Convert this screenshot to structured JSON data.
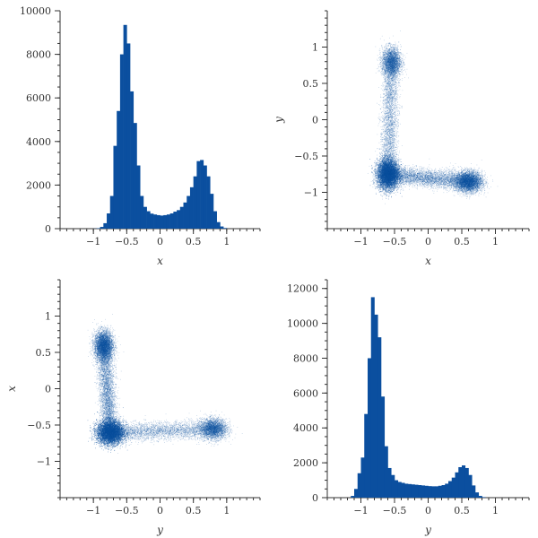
{
  "accent_color": "#0b4f9f",
  "chart_data": [
    {
      "type": "bar",
      "panel": "top-left",
      "xlabel": "x",
      "ylabel": "",
      "xlim": [
        -1.5,
        1.5
      ],
      "ylim": [
        0,
        10000
      ],
      "xticks": [
        -1,
        -0.5,
        0,
        0.5,
        1
      ],
      "yticks": [
        0,
        2000,
        4000,
        6000,
        8000,
        10000
      ],
      "bin_width": 0.05,
      "bin_start": -1.0,
      "values": [
        5,
        20,
        80,
        250,
        700,
        1500,
        3800,
        5400,
        8000,
        9350,
        8500,
        6300,
        4850,
        2900,
        1500,
        1000,
        800,
        690,
        650,
        620,
        600,
        620,
        650,
        700,
        780,
        850,
        1000,
        1200,
        1500,
        1900,
        2400,
        3100,
        3150,
        2900,
        2400,
        1600,
        800,
        300,
        100,
        30
      ]
    },
    {
      "type": "scatter",
      "panel": "top-right",
      "xlabel": "x",
      "ylabel": "y",
      "xlim": [
        -1.5,
        1.5
      ],
      "ylim": [
        -1.5,
        1.5
      ],
      "xticks": [
        -1,
        -0.5,
        0,
        0.5,
        1
      ],
      "yticks": [
        -1,
        -0.5,
        0,
        0.5,
        1
      ],
      "clusters": [
        {
          "cx": -0.6,
          "cy": -0.75,
          "sx": 0.08,
          "sy": 0.1,
          "weight": 0.4
        },
        {
          "cx": -0.55,
          "cy": 0.8,
          "sx": 0.07,
          "sy": 0.1,
          "weight": 0.12
        },
        {
          "cx": 0.6,
          "cy": -0.85,
          "sx": 0.1,
          "sy": 0.07,
          "weight": 0.18
        }
      ],
      "bridges": [
        {
          "from": [
            -0.6,
            -0.75
          ],
          "to": [
            -0.55,
            0.8
          ],
          "weight": 0.13,
          "spread": 0.06
        },
        {
          "from": [
            -0.6,
            -0.75
          ],
          "to": [
            0.6,
            -0.85
          ],
          "weight": 0.17,
          "spread": 0.06
        }
      ]
    },
    {
      "type": "scatter",
      "panel": "bottom-left",
      "xlabel": "y",
      "ylabel": "x",
      "xlim": [
        -1.5,
        1.5
      ],
      "ylim": [
        -1.5,
        1.5
      ],
      "xticks": [
        -1,
        -0.5,
        0,
        0.5,
        1
      ],
      "yticks": [
        -1,
        -0.5,
        0,
        0.5,
        1
      ],
      "clusters": [
        {
          "cx": -0.75,
          "cy": -0.6,
          "sx": 0.1,
          "sy": 0.08,
          "weight": 0.4
        },
        {
          "cx": 0.8,
          "cy": -0.55,
          "sx": 0.1,
          "sy": 0.07,
          "weight": 0.12
        },
        {
          "cx": -0.85,
          "cy": 0.6,
          "sx": 0.07,
          "sy": 0.1,
          "weight": 0.18
        }
      ],
      "bridges": [
        {
          "from": [
            -0.75,
            -0.6
          ],
          "to": [
            0.8,
            -0.55
          ],
          "weight": 0.13,
          "spread": 0.06
        },
        {
          "from": [
            -0.75,
            -0.6
          ],
          "to": [
            -0.85,
            0.6
          ],
          "weight": 0.17,
          "spread": 0.06
        }
      ]
    },
    {
      "type": "bar",
      "panel": "bottom-right",
      "xlabel": "y",
      "ylabel": "",
      "xlim": [
        -1.5,
        1.5
      ],
      "ylim": [
        0,
        12500
      ],
      "xticks": [
        -1,
        -0.5,
        0,
        0.5,
        1
      ],
      "yticks": [
        0,
        2000,
        4000,
        6000,
        8000,
        10000,
        12000
      ],
      "bin_width": 0.05,
      "bin_start": -1.15,
      "values": [
        100,
        500,
        1400,
        2300,
        4800,
        8000,
        11500,
        10500,
        9200,
        5800,
        2950,
        1700,
        1300,
        1000,
        900,
        850,
        800,
        780,
        760,
        740,
        720,
        700,
        680,
        660,
        650,
        650,
        680,
        720,
        800,
        950,
        1150,
        1450,
        1750,
        1850,
        1700,
        1300,
        700,
        300,
        100,
        30
      ]
    }
  ]
}
